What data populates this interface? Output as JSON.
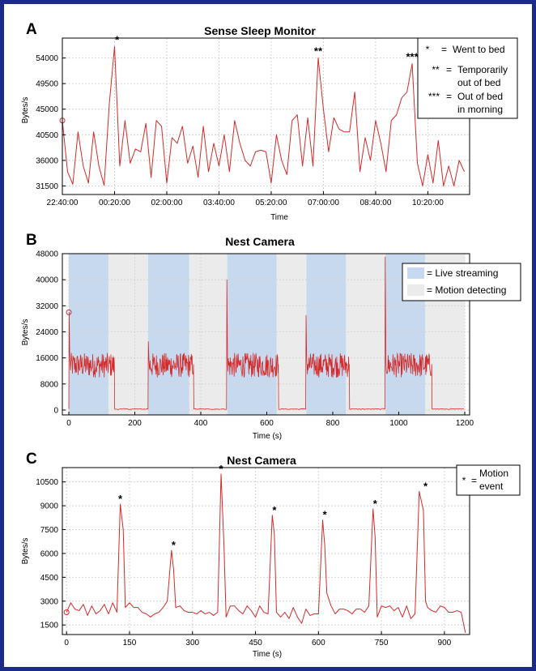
{
  "chart_data": [
    {
      "panel": "A",
      "type": "line",
      "title": "Sense Sleep Monitor",
      "xlabel": "Time",
      "ylabel": "Bytes/s",
      "x_tick_labels": [
        "22:40:00",
        "00:20:00",
        "02:00:00",
        "03:40:00",
        "05:20:00",
        "07:00:00",
        "08:40:00",
        "10:20:00"
      ],
      "x_tick_values_min": [
        0,
        100,
        200,
        300,
        400,
        500,
        600,
        700
      ],
      "xlim_min": [
        0,
        780
      ],
      "ylim": [
        30000,
        57500
      ],
      "y_ticks": [
        31500,
        36000,
        40500,
        45000,
        49500,
        54000
      ],
      "y_tick_labels": [
        "31500",
        "36000",
        "40500",
        "45000",
        "49500",
        "54000"
      ],
      "grid": true,
      "legend_position": "top-right",
      "legend": [
        {
          "symbol": "*",
          "label": "Went to bed"
        },
        {
          "symbol": "**",
          "label": "Temporarily out of bed"
        },
        {
          "symbol": "***",
          "label": "Out of bed in morning"
        }
      ],
      "series": [
        {
          "color": "#d42a2a",
          "x_min": [
            0,
            10,
            20,
            30,
            40,
            50,
            60,
            70,
            80,
            90,
            100,
            110,
            120,
            130,
            140,
            150,
            160,
            170,
            180,
            190,
            200,
            210,
            220,
            230,
            240,
            250,
            260,
            270,
            280,
            290,
            300,
            310,
            320,
            330,
            340,
            350,
            360,
            370,
            380,
            390,
            400,
            410,
            420,
            430,
            440,
            450,
            460,
            470,
            480,
            490,
            500,
            510,
            520,
            530,
            540,
            550,
            560,
            570,
            580,
            590,
            600,
            610,
            620,
            630,
            640,
            650,
            660,
            670,
            680,
            690,
            700,
            710,
            720,
            730,
            740,
            750,
            760,
            770
          ],
          "y": [
            43000,
            34000,
            31800,
            41000,
            35000,
            32000,
            41000,
            35000,
            31600,
            46000,
            56000,
            35000,
            43000,
            35500,
            38000,
            37500,
            42500,
            33000,
            43000,
            42000,
            32000,
            40000,
            39000,
            42000,
            35500,
            38500,
            33000,
            42000,
            34000,
            39000,
            35000,
            40500,
            34000,
            43000,
            39000,
            36000,
            35000,
            37500,
            37800,
            37500,
            32000,
            40500,
            36000,
            33500,
            43000,
            44000,
            35000,
            43500,
            35000,
            54000,
            45000,
            37500,
            43500,
            41500,
            41000,
            41000,
            48000,
            34000,
            40000,
            36000,
            43000,
            39000,
            34000,
            43000,
            44000,
            47000,
            48000,
            53000,
            35500,
            31500,
            37000,
            32000,
            39500,
            31500,
            35000,
            31500,
            36000,
            34000
          ]
        }
      ],
      "annotations": [
        {
          "text": "*",
          "x_min": 105,
          "y": 56000
        },
        {
          "text": "**",
          "x_min": 490,
          "y": 54000
        },
        {
          "text": "***",
          "x_min": 670,
          "y": 53000
        }
      ]
    },
    {
      "panel": "B",
      "type": "line",
      "title": "Nest Camera",
      "xlabel": "Time (s)",
      "ylabel": "Bytes/s",
      "xlim": [
        0,
        1200
      ],
      "ylim": [
        -1500,
        48000
      ],
      "x_ticks": [
        0,
        200,
        400,
        600,
        800,
        1000,
        1200
      ],
      "y_ticks": [
        0,
        8000,
        16000,
        24000,
        32000,
        40000,
        48000
      ],
      "grid": true,
      "legend_position": "top-right",
      "legend": [
        {
          "label": "= Live streaming",
          "color": "#c6d9ee"
        },
        {
          "label": "= Motion detecting",
          "color": "#ebebeb"
        }
      ],
      "live_streaming_intervals": [
        [
          0,
          120
        ],
        [
          240,
          365
        ],
        [
          480,
          630
        ],
        [
          720,
          840
        ],
        [
          960,
          1080
        ]
      ],
      "motion_detecting_intervals": [
        [
          120,
          240
        ],
        [
          365,
          480
        ],
        [
          630,
          720
        ],
        [
          840,
          960
        ],
        [
          1080,
          1200
        ]
      ],
      "streaming_blocks": [
        {
          "start": 0,
          "end": 138,
          "peak": 30000
        },
        {
          "start": 240,
          "end": 378,
          "peak": 21000
        },
        {
          "start": 478,
          "end": 635,
          "peak": 40000
        },
        {
          "start": 718,
          "end": 850,
          "peak": 29000
        },
        {
          "start": 958,
          "end": 1100,
          "peak": 47000
        }
      ],
      "streaming_level_range": [
        10000,
        17500
      ],
      "idle_level": 300,
      "series": [
        {
          "color": "#d42a2a"
        }
      ]
    },
    {
      "panel": "C",
      "type": "line",
      "title": "Nest Camera",
      "xlabel": "Time (s)",
      "ylabel": "Bytes/s",
      "xlim": [
        -10,
        960
      ],
      "ylim": [
        900,
        11400
      ],
      "x_ticks": [
        0,
        150,
        300,
        450,
        600,
        750,
        900
      ],
      "y_ticks": [
        1500,
        3000,
        4500,
        6000,
        7500,
        9000,
        10500
      ],
      "grid": true,
      "legend_position": "top-right",
      "legend": [
        {
          "symbol": "*",
          "label": "= Motion event"
        }
      ],
      "series": [
        {
          "color": "#d42a2a",
          "x": [
            0,
            10,
            20,
            30,
            40,
            50,
            60,
            70,
            80,
            90,
            100,
            110,
            120,
            128,
            135,
            140,
            150,
            160,
            170,
            180,
            190,
            200,
            210,
            220,
            230,
            240,
            250,
            255,
            260,
            270,
            280,
            290,
            300,
            310,
            320,
            330,
            340,
            350,
            360,
            368,
            375,
            380,
            390,
            400,
            410,
            420,
            430,
            440,
            450,
            460,
            470,
            480,
            490,
            495,
            500,
            510,
            520,
            530,
            540,
            550,
            560,
            570,
            580,
            590,
            600,
            610,
            615,
            620,
            630,
            640,
            650,
            660,
            670,
            680,
            690,
            700,
            710,
            720,
            730,
            735,
            740,
            750,
            760,
            770,
            780,
            790,
            800,
            810,
            820,
            830,
            840,
            850,
            855,
            860,
            870,
            880,
            890,
            900,
            910,
            920,
            930,
            940,
            950
          ],
          "y": [
            2300,
            2900,
            2500,
            2400,
            2800,
            2100,
            2700,
            2200,
            2400,
            2800,
            2200,
            2900,
            2300,
            9100,
            7500,
            2600,
            2900,
            2600,
            2600,
            2300,
            2200,
            2000,
            2200,
            2300,
            2600,
            3000,
            6200,
            5000,
            2600,
            2700,
            2400,
            2300,
            2300,
            2200,
            2400,
            2200,
            2300,
            2100,
            2300,
            11000,
            6500,
            2000,
            2700,
            2700,
            2400,
            2200,
            2700,
            2400,
            2000,
            2700,
            2300,
            2200,
            8400,
            7200,
            2300,
            2000,
            2300,
            1900,
            2600,
            2000,
            1600,
            2500,
            2100,
            2200,
            2200,
            8100,
            6500,
            3500,
            2700,
            2200,
            2500,
            2500,
            2400,
            2200,
            2500,
            2500,
            2300,
            2700,
            8800,
            7000,
            2000,
            2700,
            2600,
            2700,
            2400,
            2600,
            2000,
            2700,
            1900,
            2200,
            9900,
            8700,
            3000,
            2600,
            2400,
            2300,
            2700,
            2600,
            2300,
            2300,
            2400,
            2300,
            1000
          ]
        }
      ],
      "annotations": [
        {
          "text": "*",
          "x": 128,
          "y": 9100
        },
        {
          "text": "*",
          "x": 255,
          "y": 6200
        },
        {
          "text": "*",
          "x": 368,
          "y": 11000
        },
        {
          "text": "*",
          "x": 495,
          "y": 8400
        },
        {
          "text": "*",
          "x": 615,
          "y": 8100
        },
        {
          "text": "*",
          "x": 735,
          "y": 8800
        },
        {
          "text": "*",
          "x": 855,
          "y": 9900
        }
      ]
    }
  ]
}
